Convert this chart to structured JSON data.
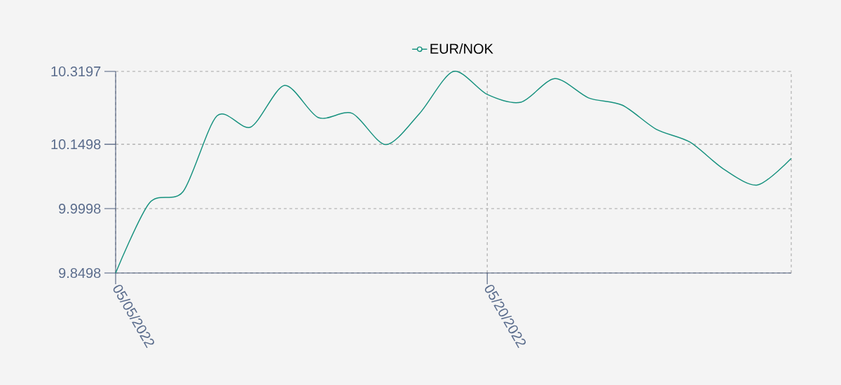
{
  "chart_data": {
    "type": "line",
    "legend": "top",
    "grid": true,
    "categories": [
      "05/05/2022",
      null,
      null,
      null,
      null,
      null,
      null,
      null,
      null,
      null,
      null,
      "05/20/2022",
      null,
      null,
      null,
      null,
      null,
      null,
      null,
      null,
      null
    ],
    "series": [
      {
        "name": "EUR/NOK",
        "color": "#16917e",
        "values": [
          9.8498,
          10.013,
          10.04,
          10.216,
          10.19,
          10.287,
          10.212,
          10.222,
          10.149,
          10.222,
          10.3197,
          10.266,
          10.248,
          10.303,
          10.258,
          10.241,
          10.185,
          10.155,
          10.092,
          10.055,
          10.117
        ]
      }
    ],
    "ylim": [
      9.8498,
      10.3197
    ],
    "yticks": [
      9.8498,
      9.9998,
      10.1498,
      10.3197
    ]
  }
}
